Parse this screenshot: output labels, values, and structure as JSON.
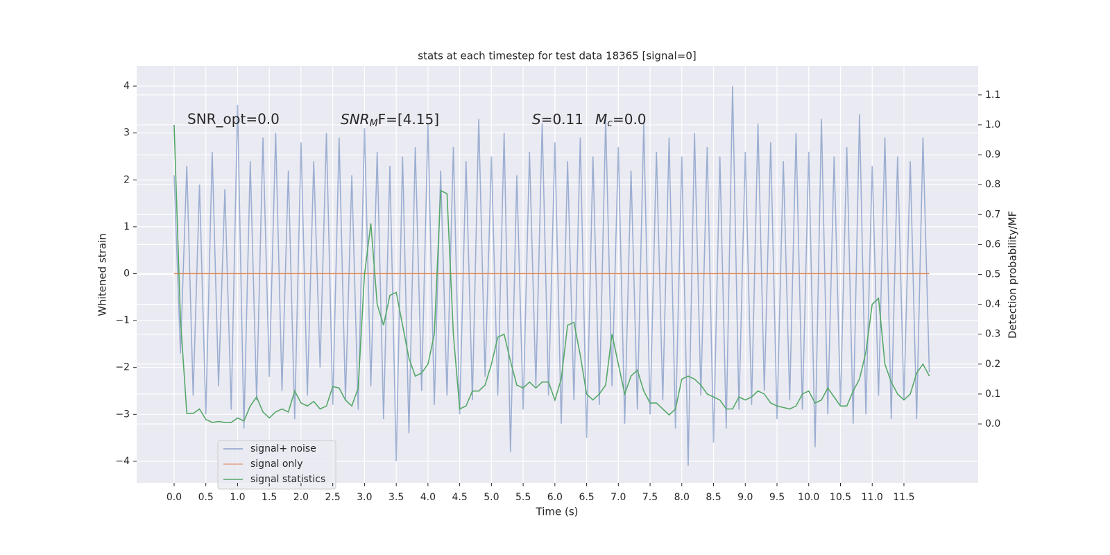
{
  "chart_data": {
    "type": "line",
    "title": "stats at each timestep for test data 18365 [signal=0]",
    "x_label": "Time (s)",
    "y_label": "Whitened strain",
    "y2_label": "Detection probability/MF",
    "annotations": [
      {
        "text": "SNR_opt=0.0"
      },
      {
        "base": "SNR",
        "sub": "M",
        "rest": "F=[4.15]"
      },
      {
        "base": "S",
        "rest": "=0.11"
      },
      {
        "base": "M",
        "sub": "c",
        "rest": "=0.0"
      }
    ],
    "xlim": [
      -0.59,
      12.67
    ],
    "ylim": [
      -4.46,
      4.43
    ],
    "y2lim": [
      -0.197,
      1.197
    ],
    "xticks": [
      {
        "value": 0,
        "label": "0.0"
      },
      {
        "value": 0.5,
        "label": "0.5"
      },
      {
        "value": 1,
        "label": "1.0"
      },
      {
        "value": 1.5,
        "label": "1.5"
      },
      {
        "value": 2,
        "label": "2.0"
      },
      {
        "value": 2.5,
        "label": "2.5"
      },
      {
        "value": 3,
        "label": "3.0"
      },
      {
        "value": 3.5,
        "label": "3.5"
      },
      {
        "value": 4,
        "label": "4.0"
      },
      {
        "value": 4.5,
        "label": "4.5"
      },
      {
        "value": 5,
        "label": "5.0"
      },
      {
        "value": 5.5,
        "label": "5.5"
      },
      {
        "value": 6,
        "label": "6.0"
      },
      {
        "value": 6.5,
        "label": "6.5"
      },
      {
        "value": 7,
        "label": "7.0"
      },
      {
        "value": 7.5,
        "label": "7.5"
      },
      {
        "value": 8,
        "label": "8.0"
      },
      {
        "value": 8.5,
        "label": "8.5"
      },
      {
        "value": 9,
        "label": "9.0"
      },
      {
        "value": 9.5,
        "label": "9.5"
      },
      {
        "value": 10,
        "label": "10.0"
      },
      {
        "value": 10.5,
        "label": "10.5"
      },
      {
        "value": 11,
        "label": "11.0"
      },
      {
        "value": 11.5,
        "label": "11.5"
      }
    ],
    "yticks": [
      {
        "value": -4,
        "label": "−4"
      },
      {
        "value": -3,
        "label": "−3"
      },
      {
        "value": -2,
        "label": "−2"
      },
      {
        "value": -1,
        "label": "−1"
      },
      0,
      1,
      2,
      3,
      4
    ],
    "y2ticks": [
      {
        "value": 0,
        "label": "0.0"
      },
      {
        "value": 0.1,
        "label": "0.1"
      },
      {
        "value": 0.2,
        "label": "0.2"
      },
      {
        "value": 0.3,
        "label": "0.3"
      },
      {
        "value": 0.4,
        "label": "0.4"
      },
      {
        "value": 0.5,
        "label": "0.5"
      },
      {
        "value": 0.6,
        "label": "0.6"
      },
      {
        "value": 0.7,
        "label": "0.7"
      },
      {
        "value": 0.8,
        "label": "0.8"
      },
      {
        "value": 0.9,
        "label": "0.9"
      },
      {
        "value": 1,
        "label": "1.0"
      },
      {
        "value": 1.1,
        "label": "1.1"
      }
    ],
    "grid": true,
    "legend": "lower left",
    "x": [
      0,
      0.1,
      0.2,
      0.3,
      0.4,
      0.5,
      0.6,
      0.7,
      0.8,
      0.9,
      1,
      1.1,
      1.2,
      1.3,
      1.4,
      1.5,
      1.6,
      1.7,
      1.8,
      1.9,
      2,
      2.1,
      2.2,
      2.3,
      2.4,
      2.5,
      2.6,
      2.7,
      2.8,
      2.9,
      3,
      3.1,
      3.2,
      3.3,
      3.4,
      3.5,
      3.6,
      3.7,
      3.8,
      3.9,
      4,
      4.1,
      4.2,
      4.3,
      4.4,
      4.5,
      4.6,
      4.7,
      4.8,
      4.9,
      5,
      5.1,
      5.2,
      5.3,
      5.4,
      5.5,
      5.6,
      5.7,
      5.8,
      5.9,
      6,
      6.1,
      6.2,
      6.3,
      6.4,
      6.5,
      6.6,
      6.7,
      6.8,
      6.9,
      7,
      7.1,
      7.2,
      7.3,
      7.4,
      7.5,
      7.6,
      7.7,
      7.8,
      7.9,
      8,
      8.1,
      8.2,
      8.3,
      8.4,
      8.5,
      8.6,
      8.7,
      8.8,
      8.9,
      9,
      9.1,
      9.2,
      9.3,
      9.4,
      9.5,
      9.6,
      9.7,
      9.8,
      9.9,
      10,
      10.1,
      10.2,
      10.3,
      10.4,
      10.5,
      10.6,
      10.7,
      10.8,
      10.9,
      11,
      11.1,
      11.2,
      11.3,
      11.4,
      11.5,
      11.6,
      11.7,
      11.8,
      11.9
    ],
    "series": [
      {
        "name": "signal+ noise",
        "color": "#4c72b0",
        "values": [
          2.1,
          -1.7,
          2.3,
          -2.6,
          1.9,
          -3.0,
          2.6,
          -2.4,
          1.8,
          -2.9,
          3.6,
          -3.3,
          2.4,
          -2.7,
          2.9,
          -2.2,
          3.0,
          -2.5,
          2.2,
          -3.1,
          2.8,
          -2.6,
          2.4,
          -2.0,
          3.0,
          -2.8,
          2.9,
          -2.7,
          2.1,
          -2.9,
          3.1,
          -2.4,
          2.6,
          -3.1,
          2.3,
          -4.0,
          2.5,
          -3.4,
          2.7,
          -2.5,
          3.2,
          -2.8,
          2.2,
          -2.6,
          2.7,
          -3.0,
          2.4,
          -2.7,
          3.3,
          -2.2,
          2.5,
          -2.6,
          3.0,
          -3.8,
          2.1,
          -2.9,
          2.6,
          -2.4,
          3.2,
          -2.6,
          2.8,
          -3.2,
          2.4,
          -2.7,
          2.9,
          -3.5,
          2.5,
          -2.8,
          3.3,
          -2.4,
          2.7,
          -3.2,
          2.2,
          -2.9,
          3.2,
          -3.0,
          2.6,
          -2.7,
          2.9,
          -3.3,
          2.5,
          -4.1,
          3.0,
          -2.6,
          2.7,
          -3.6,
          2.5,
          -3.3,
          4.0,
          -2.9,
          2.6,
          -2.8,
          3.2,
          -2.5,
          2.8,
          -3.1,
          2.4,
          -2.7,
          3.0,
          -2.9,
          2.6,
          -3.7,
          3.3,
          -3.0,
          2.5,
          -2.8,
          2.7,
          -3.2,
          3.4,
          -3.0,
          2.3,
          -2.6,
          2.9,
          -3.1,
          2.5,
          -2.7,
          2.4,
          -3.1,
          2.9,
          -2.1
        ]
      },
      {
        "name": "signal only",
        "color": "#dd8452",
        "values": [
          0,
          0,
          0,
          0,
          0,
          0,
          0,
          0,
          0,
          0,
          0,
          0,
          0,
          0,
          0,
          0,
          0,
          0,
          0,
          0,
          0,
          0,
          0,
          0,
          0,
          0,
          0,
          0,
          0,
          0,
          0,
          0,
          0,
          0,
          0,
          0,
          0,
          0,
          0,
          0,
          0,
          0,
          0,
          0,
          0,
          0,
          0,
          0,
          0,
          0,
          0,
          0,
          0,
          0,
          0,
          0,
          0,
          0,
          0,
          0,
          0,
          0,
          0,
          0,
          0,
          0,
          0,
          0,
          0,
          0,
          0,
          0,
          0,
          0,
          0,
          0,
          0,
          0,
          0,
          0,
          0,
          0,
          0,
          0,
          0,
          0,
          0,
          0,
          0,
          0,
          0,
          0,
          0,
          0,
          0,
          0,
          0,
          0,
          0,
          0,
          0,
          0,
          0,
          0,
          0,
          0,
          0,
          0,
          0,
          0,
          0,
          0,
          0,
          0,
          0,
          0,
          0,
          0,
          0,
          0
        ]
      },
      {
        "name": "signal statistics",
        "color": "#55a868",
        "axis": "y2",
        "values": [
          1.0,
          0.35,
          0.035,
          0.035,
          0.05,
          0.015,
          0.005,
          0.008,
          0.005,
          0.005,
          0.02,
          0.01,
          0.06,
          0.09,
          0.04,
          0.02,
          0.04,
          0.05,
          0.04,
          0.11,
          0.07,
          0.06,
          0.075,
          0.05,
          0.06,
          0.125,
          0.12,
          0.08,
          0.06,
          0.12,
          0.5,
          0.67,
          0.4,
          0.33,
          0.43,
          0.44,
          0.33,
          0.22,
          0.16,
          0.17,
          0.2,
          0.3,
          0.78,
          0.77,
          0.3,
          0.05,
          0.06,
          0.11,
          0.11,
          0.13,
          0.2,
          0.29,
          0.3,
          0.21,
          0.13,
          0.12,
          0.14,
          0.12,
          0.14,
          0.14,
          0.08,
          0.15,
          0.33,
          0.34,
          0.23,
          0.1,
          0.08,
          0.1,
          0.13,
          0.3,
          0.2,
          0.1,
          0.16,
          0.18,
          0.11,
          0.07,
          0.07,
          0.05,
          0.03,
          0.05,
          0.15,
          0.16,
          0.15,
          0.13,
          0.1,
          0.09,
          0.08,
          0.05,
          0.05,
          0.09,
          0.08,
          0.09,
          0.11,
          0.1,
          0.07,
          0.06,
          0.055,
          0.05,
          0.06,
          0.1,
          0.11,
          0.07,
          0.08,
          0.12,
          0.09,
          0.06,
          0.06,
          0.11,
          0.15,
          0.24,
          0.4,
          0.42,
          0.2,
          0.14,
          0.1,
          0.08,
          0.1,
          0.17,
          0.2,
          0.16
        ]
      }
    ]
  }
}
